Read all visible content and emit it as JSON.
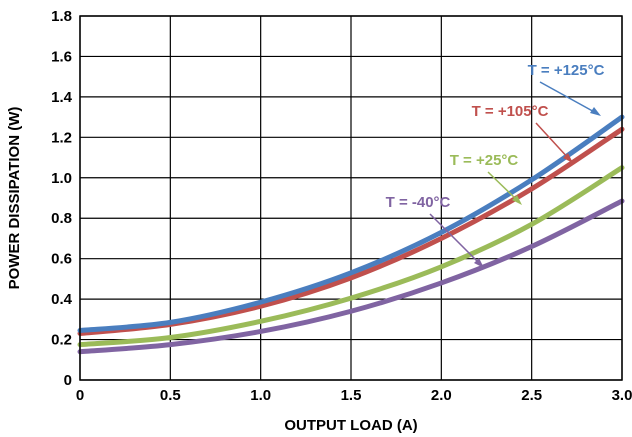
{
  "chart_data": {
    "type": "line",
    "title": "",
    "xlabel": "OUTPUT LOAD (A)",
    "ylabel": "POWER DISSIPATION (W)",
    "xlim": [
      0,
      3.0
    ],
    "ylim": [
      0,
      1.8
    ],
    "x_ticks": [
      "0",
      "0.5",
      "1.0",
      "1.5",
      "2.0",
      "2.5",
      "3.0"
    ],
    "x_tick_values": [
      0,
      0.5,
      1.0,
      1.5,
      2.0,
      2.5,
      3.0
    ],
    "y_ticks": [
      "0",
      "0.2",
      "0.4",
      "0.6",
      "0.8",
      "1.0",
      "1.2",
      "1.4",
      "1.6",
      "1.8"
    ],
    "y_tick_values": [
      0,
      0.2,
      0.4,
      0.6,
      0.8,
      1.0,
      1.2,
      1.4,
      1.6,
      1.8
    ],
    "grid": true,
    "x": [
      0,
      0.5,
      1.0,
      1.5,
      2.0,
      2.5,
      3.0
    ],
    "series": [
      {
        "name": "T = +125°C",
        "color": "#4a7ebf",
        "values": [
          0.245,
          0.285,
          0.385,
          0.53,
          0.73,
          0.99,
          1.3
        ]
      },
      {
        "name": "T = +105°C",
        "color": "#c0504d",
        "values": [
          0.23,
          0.275,
          0.365,
          0.505,
          0.7,
          0.945,
          1.24
        ]
      },
      {
        "name": "T = +25°C",
        "color": "#9bbb59",
        "values": [
          0.175,
          0.21,
          0.29,
          0.405,
          0.56,
          0.77,
          1.05
        ]
      },
      {
        "name": "T = -40°C",
        "color": "#8064a2",
        "values": [
          0.14,
          0.175,
          0.24,
          0.34,
          0.48,
          0.66,
          0.885
        ]
      }
    ]
  }
}
